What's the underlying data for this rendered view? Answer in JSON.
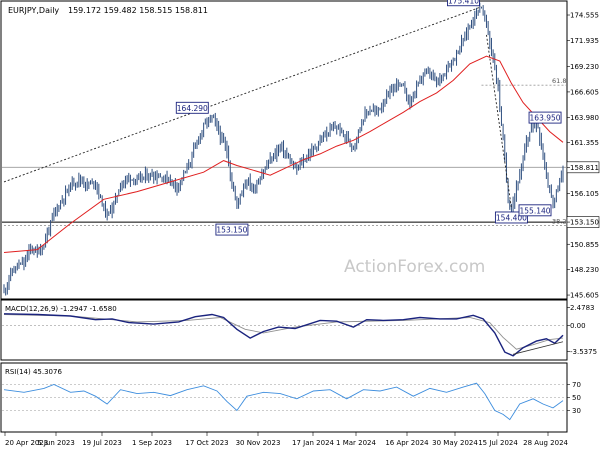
{
  "header": {
    "symbol": "EURJPY,Daily",
    "ohlc": "159.172 159.482 158.515 158.811"
  },
  "watermark": "ActionForex.com",
  "colors": {
    "candles": "#2f4f7f",
    "ema": "#e02020",
    "macd_line": "#1a237e",
    "macd_signal": "#909090",
    "rsi": "#3e8ede",
    "price_box": "#1a237e",
    "frame": "#000000",
    "grid": "#9a9a9a"
  },
  "chart_data": [
    {
      "type": "candlestick",
      "title": "EURJPY,Daily",
      "ylim": [
        145.3,
        175.9
      ],
      "y_ticks": [
        "174.555",
        "171.935",
        "169.230",
        "166.605",
        "163.980",
        "161.355",
        "158.811",
        "156.105",
        "153.150",
        "150.855",
        "148.230",
        "145.605"
      ],
      "x_ticks": [
        "20 Apr 2023",
        "5 Jun 2023",
        "19 Jul 2023",
        "1 Sep 2023",
        "17 Oct 2023",
        "30 Nov 2023",
        "17 Jan 2024",
        "1 Mar 2024",
        "16 Apr 2024",
        "30 May 2024",
        "15 Jul 2024",
        "28 Aug 2024"
      ],
      "close_path": [
        [
          0,
          146.0
        ],
        [
          4,
          147.8
        ],
        [
          8,
          148.6
        ],
        [
          12,
          148.9
        ],
        [
          16,
          150.5
        ],
        [
          20,
          150.0
        ],
        [
          24,
          150.8
        ],
        [
          26,
          152.0
        ],
        [
          30,
          154.0
        ],
        [
          35,
          155.5
        ],
        [
          40,
          157.0
        ],
        [
          45,
          157.6
        ],
        [
          50,
          157.0
        ],
        [
          55,
          157.3
        ],
        [
          58,
          155.5
        ],
        [
          62,
          153.8
        ],
        [
          66,
          155.0
        ],
        [
          70,
          157.0
        ],
        [
          75,
          157.8
        ],
        [
          80,
          157.4
        ],
        [
          85,
          157.9
        ],
        [
          90,
          158.0
        ],
        [
          95,
          157.8
        ],
        [
          100,
          157.5
        ],
        [
          104,
          156.8
        ],
        [
          108,
          158.0
        ],
        [
          112,
          159.5
        ],
        [
          116,
          161.5
        ],
        [
          120,
          163.0
        ],
        [
          124,
          164.0
        ],
        [
          127,
          163.5
        ],
        [
          130,
          162.0
        ],
        [
          134,
          160.5
        ],
        [
          137,
          157.0
        ],
        [
          140,
          155.0
        ],
        [
          143,
          156.5
        ],
        [
          146,
          157.5
        ],
        [
          150,
          156.5
        ],
        [
          154,
          157.8
        ],
        [
          158,
          159.0
        ],
        [
          162,
          160.0
        ],
        [
          166,
          161.0
        ],
        [
          170,
          160.0
        ],
        [
          175,
          158.5
        ],
        [
          180,
          159.5
        ],
        [
          185,
          160.5
        ],
        [
          190,
          161.5
        ],
        [
          195,
          162.5
        ],
        [
          200,
          163.0
        ],
        [
          205,
          162.0
        ],
        [
          210,
          161.0
        ],
        [
          213,
          162.5
        ],
        [
          216,
          164.0
        ],
        [
          220,
          164.8
        ],
        [
          224,
          164.5
        ],
        [
          228,
          165.5
        ],
        [
          232,
          166.5
        ],
        [
          236,
          167.5
        ],
        [
          240,
          167.0
        ],
        [
          244,
          165.5
        ],
        [
          248,
          167.0
        ],
        [
          252,
          168.5
        ],
        [
          256,
          168.5
        ],
        [
          260,
          167.5
        ],
        [
          264,
          168.5
        ],
        [
          268,
          169.5
        ],
        [
          272,
          170.5
        ],
        [
          276,
          172.0
        ],
        [
          280,
          173.5
        ],
        [
          284,
          175.0
        ],
        [
          287,
          175.41
        ],
        [
          290,
          173.5
        ],
        [
          294,
          170.0
        ],
        [
          297,
          167.0
        ],
        [
          300,
          161.5
        ],
        [
          303,
          155.5
        ],
        [
          305,
          154.4
        ],
        [
          308,
          156.8
        ],
        [
          311,
          158.5
        ],
        [
          314,
          161.5
        ],
        [
          318,
          163.5
        ],
        [
          321,
          163.0
        ],
        [
          324,
          160.0
        ],
        [
          327,
          157.0
        ],
        [
          330,
          155.14
        ],
        [
          333,
          156.5
        ],
        [
          336,
          158.811
        ]
      ],
      "ema_path": [
        [
          0,
          150.0
        ],
        [
          20,
          150.3
        ],
        [
          40,
          153.0
        ],
        [
          60,
          155.5
        ],
        [
          80,
          156.3
        ],
        [
          100,
          157.3
        ],
        [
          120,
          158.3
        ],
        [
          132,
          159.5
        ],
        [
          140,
          159.0
        ],
        [
          150,
          158.5
        ],
        [
          160,
          158.0
        ],
        [
          170,
          158.8
        ],
        [
          180,
          159.6
        ],
        [
          190,
          160.2
        ],
        [
          200,
          161.0
        ],
        [
          210,
          161.6
        ],
        [
          220,
          162.5
        ],
        [
          230,
          163.5
        ],
        [
          240,
          164.5
        ],
        [
          250,
          165.6
        ],
        [
          260,
          166.5
        ],
        [
          270,
          167.8
        ],
        [
          280,
          169.5
        ],
        [
          290,
          170.3
        ],
        [
          298,
          169.8
        ],
        [
          305,
          167.5
        ],
        [
          312,
          165.5
        ],
        [
          320,
          164.0
        ],
        [
          328,
          162.5
        ],
        [
          336,
          161.4
        ]
      ],
      "annotations": [
        {
          "label": "175.410",
          "x": 287,
          "y": 175.41,
          "anchor": "end"
        },
        {
          "label": "164.290",
          "x": 124,
          "y": 164.29,
          "anchor": "end"
        },
        {
          "label": "163.950",
          "x": 318,
          "y": 163.95,
          "anchor": "start"
        },
        {
          "label": "154.400",
          "x": 305,
          "y": 154.4,
          "anchor": "middle"
        },
        {
          "label": "155.140",
          "x": 330,
          "y": 155.14,
          "anchor": "end"
        },
        {
          "label": "153.150",
          "x": 137,
          "y": 153.15,
          "anchor": "middle"
        }
      ],
      "fib_levels": [
        {
          "label": "61.8",
          "value": 167.3
        },
        {
          "label": "38.2",
          "value": 152.8
        }
      ],
      "support_level": 153.15,
      "current_level": 158.811,
      "trendline": {
        "from": [
          0,
          157.3
        ],
        "to": [
          287,
          175.41
        ]
      }
    },
    {
      "type": "line",
      "title": "MACD(12,26,9) -1.2947 -1.6580",
      "ylim": [
        -4.4,
        3.2
      ],
      "y_ticks": [
        "2.4783",
        "0.00",
        "-3.5375"
      ],
      "macd_path": [
        [
          0,
          1.6
        ],
        [
          20,
          1.5
        ],
        [
          40,
          1.3
        ],
        [
          55,
          0.8
        ],
        [
          65,
          0.9
        ],
        [
          75,
          0.4
        ],
        [
          90,
          0.2
        ],
        [
          105,
          0.5
        ],
        [
          115,
          1.2
        ],
        [
          125,
          1.5
        ],
        [
          132,
          1.1
        ],
        [
          140,
          -0.5
        ],
        [
          148,
          -1.7
        ],
        [
          156,
          -0.8
        ],
        [
          165,
          -0.2
        ],
        [
          175,
          -0.4
        ],
        [
          190,
          0.7
        ],
        [
          200,
          0.6
        ],
        [
          210,
          -0.2
        ],
        [
          218,
          0.8
        ],
        [
          228,
          0.7
        ],
        [
          240,
          0.8
        ],
        [
          250,
          1.1
        ],
        [
          262,
          0.9
        ],
        [
          272,
          0.9
        ],
        [
          282,
          1.4
        ],
        [
          288,
          0.9
        ],
        [
          295,
          -1.0
        ],
        [
          301,
          -3.6
        ],
        [
          306,
          -4.1
        ],
        [
          312,
          -3.0
        ],
        [
          320,
          -2.1
        ],
        [
          326,
          -1.8
        ],
        [
          331,
          -2.4
        ],
        [
          336,
          -1.3
        ]
      ],
      "signal_path": [
        [
          0,
          1.5
        ],
        [
          40,
          1.3
        ],
        [
          80,
          0.5
        ],
        [
          110,
          0.7
        ],
        [
          130,
          1.1
        ],
        [
          145,
          -0.5
        ],
        [
          156,
          -1.0
        ],
        [
          175,
          -0.2
        ],
        [
          200,
          0.5
        ],
        [
          240,
          0.7
        ],
        [
          280,
          1.1
        ],
        [
          292,
          0.4
        ],
        [
          300,
          -1.6
        ],
        [
          308,
          -3.2
        ],
        [
          318,
          -2.6
        ],
        [
          328,
          -1.9
        ],
        [
          336,
          -1.7
        ]
      ],
      "trendline": {
        "from": [
          306,
          -3.9
        ],
        "to": [
          336,
          -2.2
        ]
      }
    },
    {
      "type": "line",
      "title": "RSI(14) 45.3076",
      "ylim": [
        0,
        100
      ],
      "y_ticks": [
        "70",
        "50",
        "30"
      ],
      "rsi_path": [
        [
          0,
          62
        ],
        [
          12,
          58
        ],
        [
          24,
          64
        ],
        [
          30,
          70
        ],
        [
          40,
          58
        ],
        [
          48,
          60
        ],
        [
          55,
          52
        ],
        [
          62,
          40
        ],
        [
          70,
          62
        ],
        [
          80,
          56
        ],
        [
          90,
          58
        ],
        [
          100,
          53
        ],
        [
          110,
          62
        ],
        [
          120,
          68
        ],
        [
          128,
          60
        ],
        [
          134,
          44
        ],
        [
          140,
          30
        ],
        [
          146,
          52
        ],
        [
          156,
          58
        ],
        [
          166,
          56
        ],
        [
          176,
          48
        ],
        [
          186,
          60
        ],
        [
          196,
          62
        ],
        [
          206,
          48
        ],
        [
          216,
          62
        ],
        [
          226,
          60
        ],
        [
          236,
          66
        ],
        [
          246,
          52
        ],
        [
          256,
          64
        ],
        [
          266,
          58
        ],
        [
          276,
          66
        ],
        [
          284,
          72
        ],
        [
          289,
          56
        ],
        [
          295,
          30
        ],
        [
          300,
          24
        ],
        [
          304,
          16
        ],
        [
          310,
          40
        ],
        [
          318,
          48
        ],
        [
          324,
          40
        ],
        [
          330,
          34
        ],
        [
          336,
          45.3
        ]
      ]
    }
  ]
}
